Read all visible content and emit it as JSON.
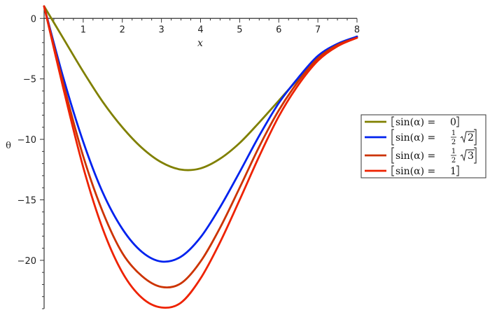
{
  "chart_data": {
    "type": "line",
    "xlabel": "x",
    "ylabel": "θ",
    "xlim": [
      0,
      8
    ],
    "ylim": [
      -24,
      1
    ],
    "x_ticks": [
      1,
      2,
      3,
      4,
      5,
      6,
      7,
      8
    ],
    "y_ticks": [
      0,
      -5,
      -10,
      -15,
      -20
    ],
    "grid": false,
    "legend_position": "right",
    "series": [
      {
        "name": "[sin(α) = 0]",
        "color": "#808000",
        "x": [
          0,
          0.5,
          1,
          1.5,
          2,
          2.5,
          3,
          3.5,
          4,
          4.5,
          5,
          5.5,
          6,
          6.5,
          7,
          7.5,
          8
        ],
        "y": [
          1,
          -1.7,
          -4.4,
          -6.9,
          -9.0,
          -10.7,
          -11.9,
          -12.5,
          -12.4,
          -11.6,
          -10.3,
          -8.6,
          -6.8,
          -5.0,
          -3.4,
          -2.3,
          -1.5
        ]
      },
      {
        "name": "[sin(α) = 1/2 √2]",
        "color": "#0022ee",
        "x": [
          0,
          0.5,
          1,
          1.5,
          2,
          2.5,
          3,
          3.5,
          4,
          4.5,
          5,
          5.5,
          6,
          6.5,
          7,
          7.5,
          8
        ],
        "y": [
          1,
          -5.0,
          -10.2,
          -14.4,
          -17.4,
          -19.3,
          -20.1,
          -19.7,
          -18.1,
          -15.6,
          -12.7,
          -9.7,
          -7.0,
          -4.9,
          -3.1,
          -2.1,
          -1.5
        ]
      },
      {
        "name": "[sin(α) = 1/2 √3]",
        "color": "#cc3300",
        "x": [
          0,
          0.5,
          1,
          1.5,
          2,
          2.5,
          3,
          3.5,
          4,
          4.5,
          5,
          5.5,
          6,
          6.5,
          7,
          7.5,
          8
        ],
        "y": [
          1,
          -5.5,
          -11.4,
          -16.0,
          -19.4,
          -21.3,
          -22.2,
          -21.9,
          -20.1,
          -17.3,
          -14.0,
          -10.6,
          -7.6,
          -5.2,
          -3.3,
          -2.2,
          -1.6
        ]
      },
      {
        "name": "[sin(α) = 1]",
        "color": "#ee2200",
        "x": [
          0,
          0.5,
          1,
          1.5,
          2,
          2.5,
          3,
          3.5,
          4,
          4.5,
          5,
          5.5,
          6,
          6.5,
          7,
          7.5,
          8
        ],
        "y": [
          1,
          -5.9,
          -12.3,
          -17.4,
          -21.0,
          -23.1,
          -23.9,
          -23.5,
          -21.5,
          -18.5,
          -15.0,
          -11.4,
          -8.1,
          -5.5,
          -3.5,
          -2.3,
          -1.6
        ]
      }
    ]
  },
  "legend": {
    "items": [
      {
        "lhs": "sin(α) = ",
        "value": "0",
        "frac_num": "",
        "frac_den": "",
        "root": ""
      },
      {
        "lhs": "sin(α) = ",
        "value": "",
        "frac_num": "1",
        "frac_den": "2",
        "root": "2"
      },
      {
        "lhs": "sin(α) = ",
        "value": "",
        "frac_num": "1",
        "frac_den": "2",
        "root": "3"
      },
      {
        "lhs": "sin(α) = ",
        "value": "1",
        "frac_num": "",
        "frac_den": "",
        "root": ""
      }
    ]
  }
}
